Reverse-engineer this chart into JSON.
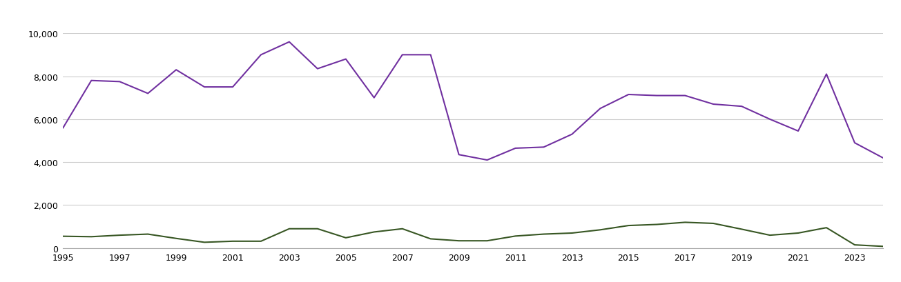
{
  "years": [
    1995,
    1996,
    1997,
    1998,
    1999,
    2000,
    2001,
    2002,
    2003,
    2004,
    2005,
    2006,
    2007,
    2008,
    2009,
    2010,
    2011,
    2012,
    2013,
    2014,
    2015,
    2016,
    2017,
    2018,
    2019,
    2020,
    2021,
    2022,
    2023,
    2024
  ],
  "established": [
    5600,
    7800,
    7750,
    7200,
    8300,
    7500,
    7500,
    9000,
    9600,
    8350,
    8800,
    7000,
    9000,
    9000,
    4350,
    4100,
    4650,
    4700,
    5300,
    6500,
    7150,
    7100,
    7100,
    6700,
    6600,
    6000,
    5450,
    8100,
    4900,
    4200
  ],
  "new_build": [
    550,
    530,
    600,
    650,
    450,
    270,
    320,
    320,
    900,
    900,
    480,
    750,
    900,
    430,
    340,
    340,
    560,
    650,
    700,
    850,
    1050,
    1100,
    1200,
    1150,
    880,
    600,
    700,
    950,
    150,
    80
  ],
  "established_color": "#7030a0",
  "new_build_color": "#375623",
  "ylim": [
    0,
    10000
  ],
  "yticks": [
    0,
    2000,
    4000,
    6000,
    8000,
    10000
  ],
  "xticks": [
    1995,
    1997,
    1999,
    2001,
    2003,
    2005,
    2007,
    2009,
    2011,
    2013,
    2015,
    2017,
    2019,
    2021,
    2023
  ],
  "background_color": "#ffffff",
  "grid_color": "#cccccc",
  "line_width": 1.5,
  "tick_fontsize": 9,
  "legend_fontsize": 9.5
}
